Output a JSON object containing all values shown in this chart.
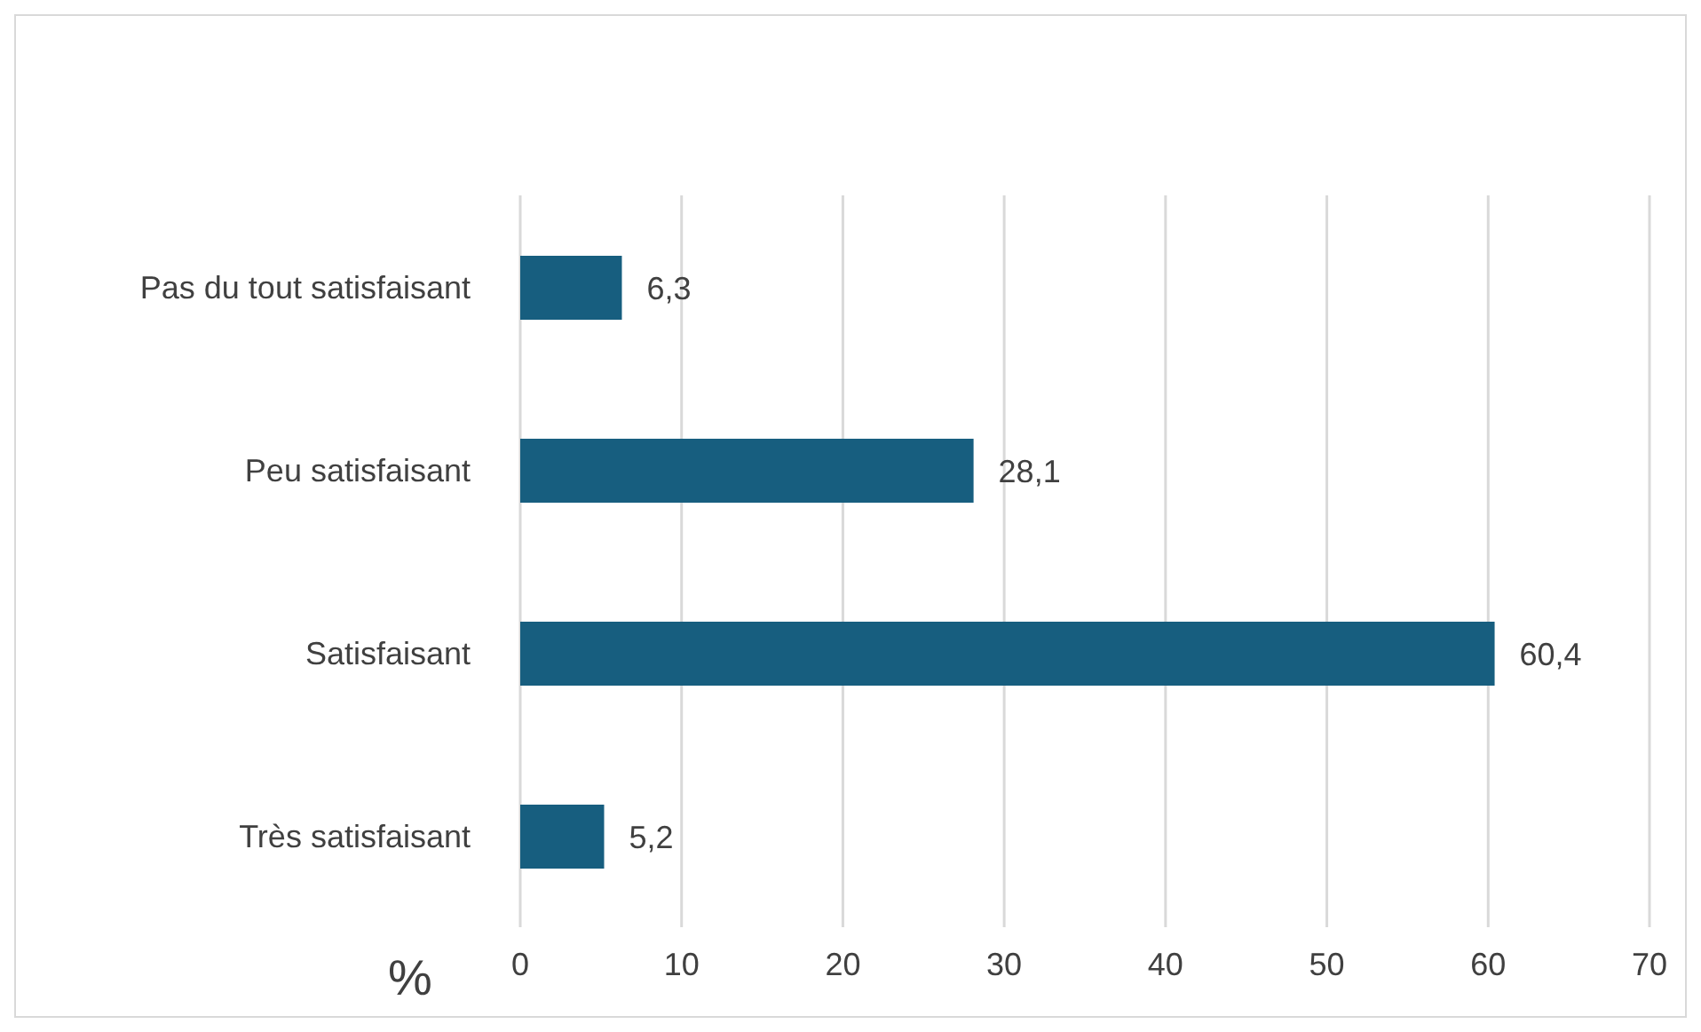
{
  "chart_data": {
    "type": "bar",
    "orientation": "horizontal",
    "xlabel": "%",
    "categories": [
      "Pas du tout satisfaisant",
      "Peu satisfaisant",
      "Satisfaisant",
      "Très satisfaisant"
    ],
    "values": [
      6.3,
      28.1,
      60.4,
      5.2
    ],
    "value_labels": [
      "6,3",
      "28,1",
      "60,4",
      "5,2"
    ],
    "color": "#175e7f",
    "xlim": [
      0,
      70
    ],
    "xticks": [
      0,
      10,
      20,
      30,
      40,
      50,
      60,
      70
    ],
    "grid": "x"
  }
}
